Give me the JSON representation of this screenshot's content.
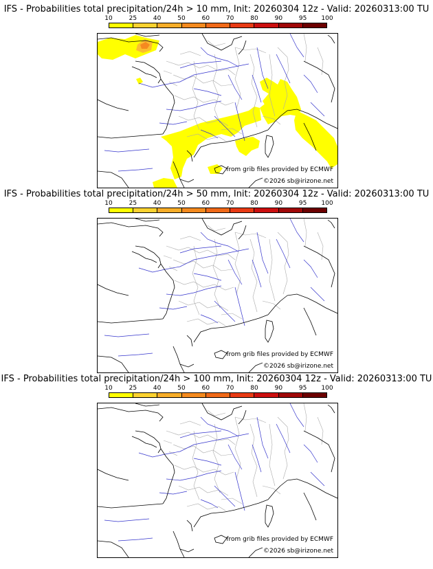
{
  "panels": [
    {
      "title": "IFS - Probabilities total precipitation/24h > 10 mm, Init: 20260304 12z - Valid: 20260313:00 TU",
      "threshold_mm": 10,
      "has_probability_area": true,
      "probability_area_colors": [
        "#ffff00",
        "#fbbd30",
        "#f58a20"
      ]
    },
    {
      "title": "IFS - Probabilities total precipitation/24h > 50 mm, Init: 20260304 12z - Valid: 20260313:00 TU",
      "threshold_mm": 50,
      "has_probability_area": false
    },
    {
      "title": "IFS - Probabilities total precipitation/24h > 100 mm, Init: 20260304 12z - Valid: 20260313:00 TU",
      "threshold_mm": 100,
      "has_probability_area": false
    }
  ],
  "scale": {
    "ticks": [
      "10",
      "25",
      "40",
      "50",
      "60",
      "70",
      "80",
      "90",
      "95",
      "100"
    ],
    "colors": [
      "#ffff00",
      "#fbd230",
      "#f7ad28",
      "#f48a1e",
      "#f06918",
      "#e83a14",
      "#cc0f0f",
      "#a00808",
      "#6c0000"
    ]
  },
  "credits": {
    "grib": "from grib files provided by ECMWF",
    "copyright": "©2026 sb@irizone.net"
  },
  "map_colors": {
    "coast": "#000000",
    "rivers": "#3333cc",
    "borders": "#aaaaaa"
  }
}
